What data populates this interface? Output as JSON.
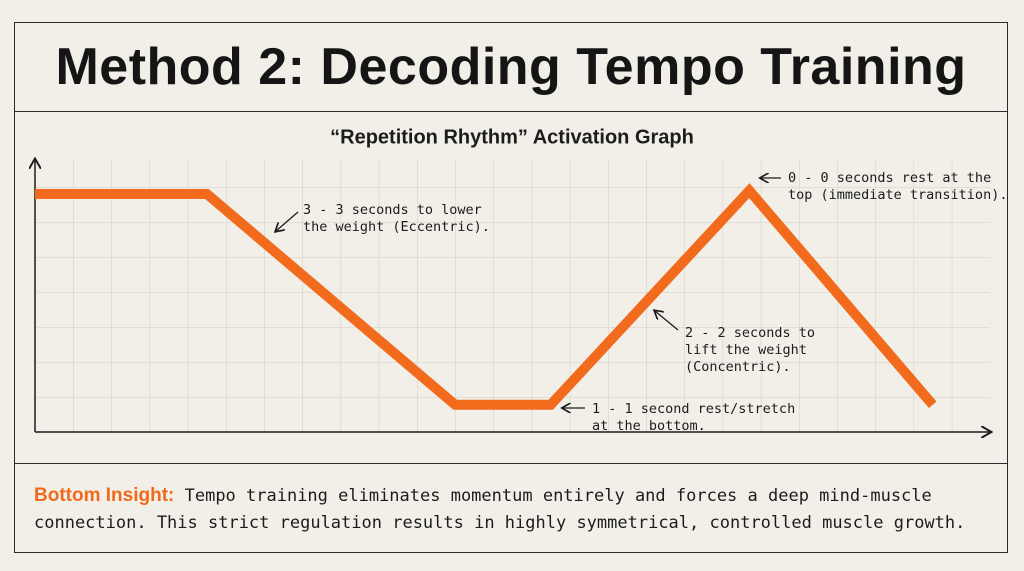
{
  "title": "Method 2: Decoding Tempo Training",
  "chart_data": {
    "type": "line",
    "title": "“Repetition Rhythm” Activation Graph",
    "x": [
      0,
      4.5,
      11,
      13.5,
      18.7,
      23.5
    ],
    "values": [
      7,
      7,
      0.8,
      0.8,
      7.1,
      0.8
    ],
    "color": "#f26b1d",
    "xlim": [
      0,
      25
    ],
    "ylim": [
      0,
      8
    ],
    "grid": true,
    "annotations": [
      {
        "lines": [
          "3 - 3 seconds to lower",
          "the weight (Eccentric)."
        ]
      },
      {
        "lines": [
          "0 - 0 seconds rest at the",
          "top (immediate transition)."
        ]
      },
      {
        "lines": [
          "2 - 2 seconds to",
          "lift the weight",
          "(Concentric)."
        ]
      },
      {
        "lines": [
          "1 - 1 second rest/stretch",
          "at the bottom."
        ]
      }
    ]
  },
  "insight": {
    "label": "Bottom Insight:",
    "text": "Tempo training eliminates momentum entirely and forces a deep mind-muscle connection. This strict regulation results in highly symmetrical, controlled muscle growth."
  }
}
